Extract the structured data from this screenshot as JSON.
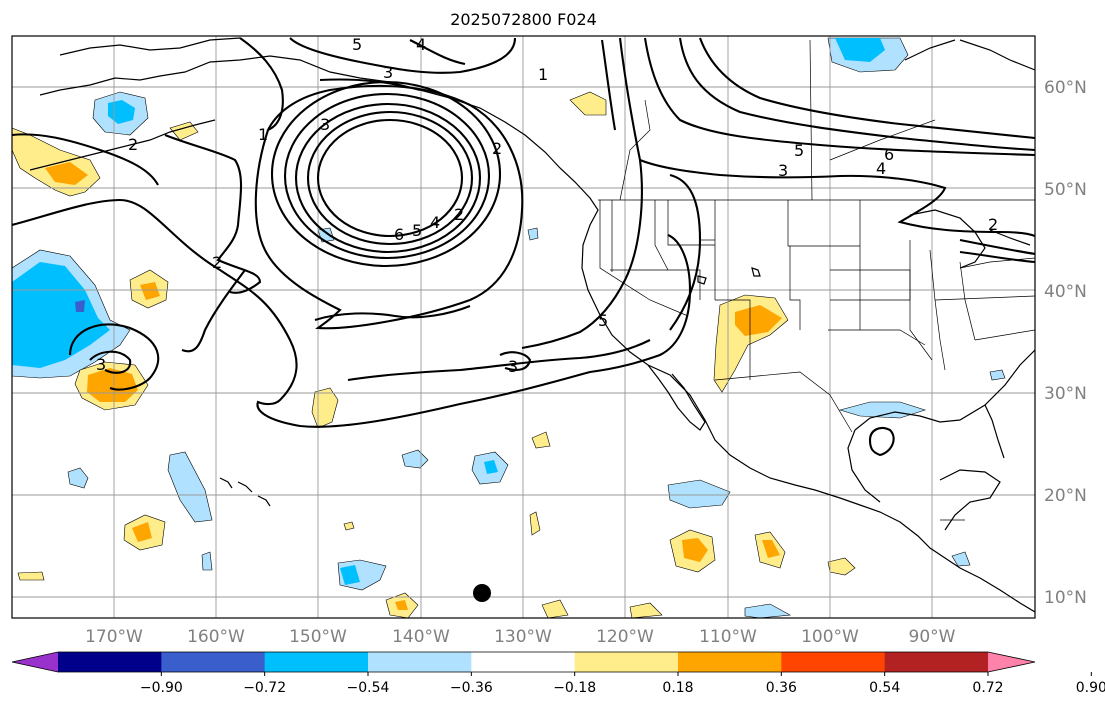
{
  "title": "2025072800 F024",
  "lat_labels": [
    "60°N",
    "50°N",
    "40°N",
    "30°N",
    "20°N",
    "10°N"
  ],
  "lon_labels": [
    "170°W",
    "160°W",
    "150°W",
    "140°W",
    "130°W",
    "120°W",
    "110°W",
    "100°W",
    "90°W"
  ],
  "colorbar": {
    "ticks": [
      "−0.90",
      "−0.72",
      "−0.54",
      "−0.36",
      "−0.18",
      "0.18",
      "0.36",
      "0.54",
      "0.72",
      "0.90"
    ],
    "colors": [
      "#9932cc",
      "#00008b",
      "#3a5fcd",
      "#00bfff",
      "#b0e2ff",
      "#ffffff",
      "#ffec8b",
      "#ffa500",
      "#ff4500",
      "#b22222",
      "#ff82ab"
    ]
  },
  "contour_labels": [
    "5",
    "4",
    "3",
    "1",
    "2",
    "3",
    "6",
    "5",
    "4",
    "2",
    "2",
    "3",
    "5",
    "3",
    "5",
    "6",
    "3",
    "4",
    "2",
    "2",
    "1"
  ],
  "marker_icon": "black-dot-icon"
}
